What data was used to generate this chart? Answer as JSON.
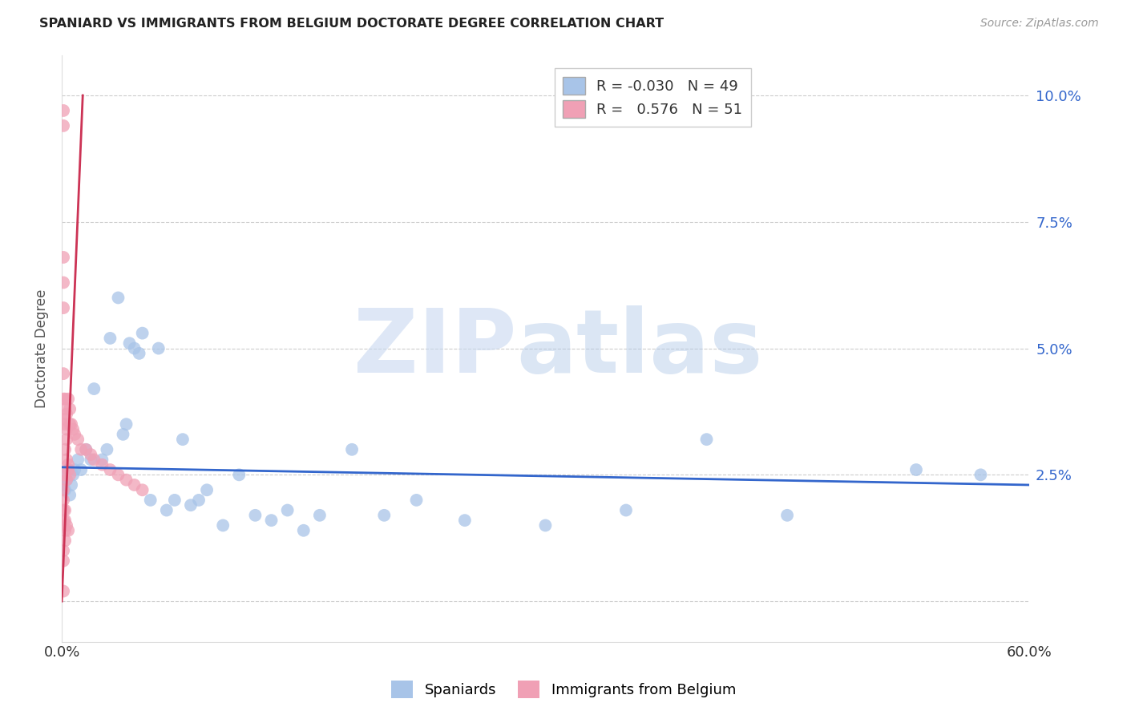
{
  "title": "SPANIARD VS IMMIGRANTS FROM BELGIUM DOCTORATE DEGREE CORRELATION CHART",
  "source": "Source: ZipAtlas.com",
  "ylabel": "Doctorate Degree",
  "xlim": [
    0.0,
    0.6
  ],
  "ylim": [
    -0.008,
    0.108
  ],
  "blue_R": -0.03,
  "blue_N": 49,
  "pink_R": 0.576,
  "pink_N": 51,
  "blue_color": "#a8c4e8",
  "pink_color": "#f0a0b5",
  "blue_line_color": "#3366cc",
  "pink_line_color": "#cc3355",
  "legend_label_blue": "Spaniards",
  "legend_label_pink": "Immigrants from Belgium",
  "blue_scatter_x": [
    0.001,
    0.002,
    0.002,
    0.003,
    0.004,
    0.005,
    0.006,
    0.007,
    0.008,
    0.01,
    0.012,
    0.015,
    0.018,
    0.02,
    0.025,
    0.028,
    0.03,
    0.035,
    0.038,
    0.04,
    0.042,
    0.045,
    0.048,
    0.05,
    0.055,
    0.06,
    0.065,
    0.07,
    0.075,
    0.08,
    0.085,
    0.09,
    0.1,
    0.11,
    0.12,
    0.13,
    0.14,
    0.15,
    0.16,
    0.18,
    0.2,
    0.22,
    0.25,
    0.3,
    0.35,
    0.4,
    0.45,
    0.53,
    0.57
  ],
  "blue_scatter_y": [
    0.023,
    0.025,
    0.022,
    0.024,
    0.026,
    0.021,
    0.023,
    0.025,
    0.026,
    0.028,
    0.026,
    0.03,
    0.028,
    0.042,
    0.028,
    0.03,
    0.052,
    0.06,
    0.033,
    0.035,
    0.051,
    0.05,
    0.049,
    0.053,
    0.02,
    0.05,
    0.018,
    0.02,
    0.032,
    0.019,
    0.02,
    0.022,
    0.015,
    0.025,
    0.017,
    0.016,
    0.018,
    0.014,
    0.017,
    0.03,
    0.017,
    0.02,
    0.016,
    0.015,
    0.018,
    0.032,
    0.017,
    0.026,
    0.025
  ],
  "pink_scatter_x": [
    0.001,
    0.001,
    0.001,
    0.001,
    0.001,
    0.001,
    0.001,
    0.002,
    0.002,
    0.002,
    0.002,
    0.002,
    0.002,
    0.003,
    0.003,
    0.003,
    0.003,
    0.003,
    0.004,
    0.004,
    0.004,
    0.005,
    0.005,
    0.005,
    0.006,
    0.007,
    0.008,
    0.01,
    0.012,
    0.015,
    0.018,
    0.02,
    0.025,
    0.03,
    0.035,
    0.04,
    0.045,
    0.05,
    0.001,
    0.001,
    0.001,
    0.001,
    0.002,
    0.002,
    0.002,
    0.003,
    0.004,
    0.001,
    0.001,
    0.001,
    0.002
  ],
  "pink_scatter_y": [
    0.097,
    0.094,
    0.068,
    0.063,
    0.058,
    0.045,
    0.04,
    0.04,
    0.038,
    0.036,
    0.035,
    0.03,
    0.025,
    0.037,
    0.034,
    0.032,
    0.028,
    0.024,
    0.027,
    0.026,
    0.04,
    0.025,
    0.038,
    0.035,
    0.035,
    0.034,
    0.033,
    0.032,
    0.03,
    0.03,
    0.029,
    0.028,
    0.027,
    0.026,
    0.025,
    0.024,
    0.023,
    0.022,
    0.022,
    0.02,
    0.018,
    0.016,
    0.018,
    0.016,
    0.014,
    0.015,
    0.014,
    0.01,
    0.008,
    0.002,
    0.012
  ],
  "blue_trend_x": [
    0.0,
    0.6
  ],
  "blue_trend_y": [
    0.0265,
    0.023
  ],
  "pink_trend_x": [
    0.0,
    0.013
  ],
  "pink_trend_y": [
    0.0,
    0.1
  ]
}
